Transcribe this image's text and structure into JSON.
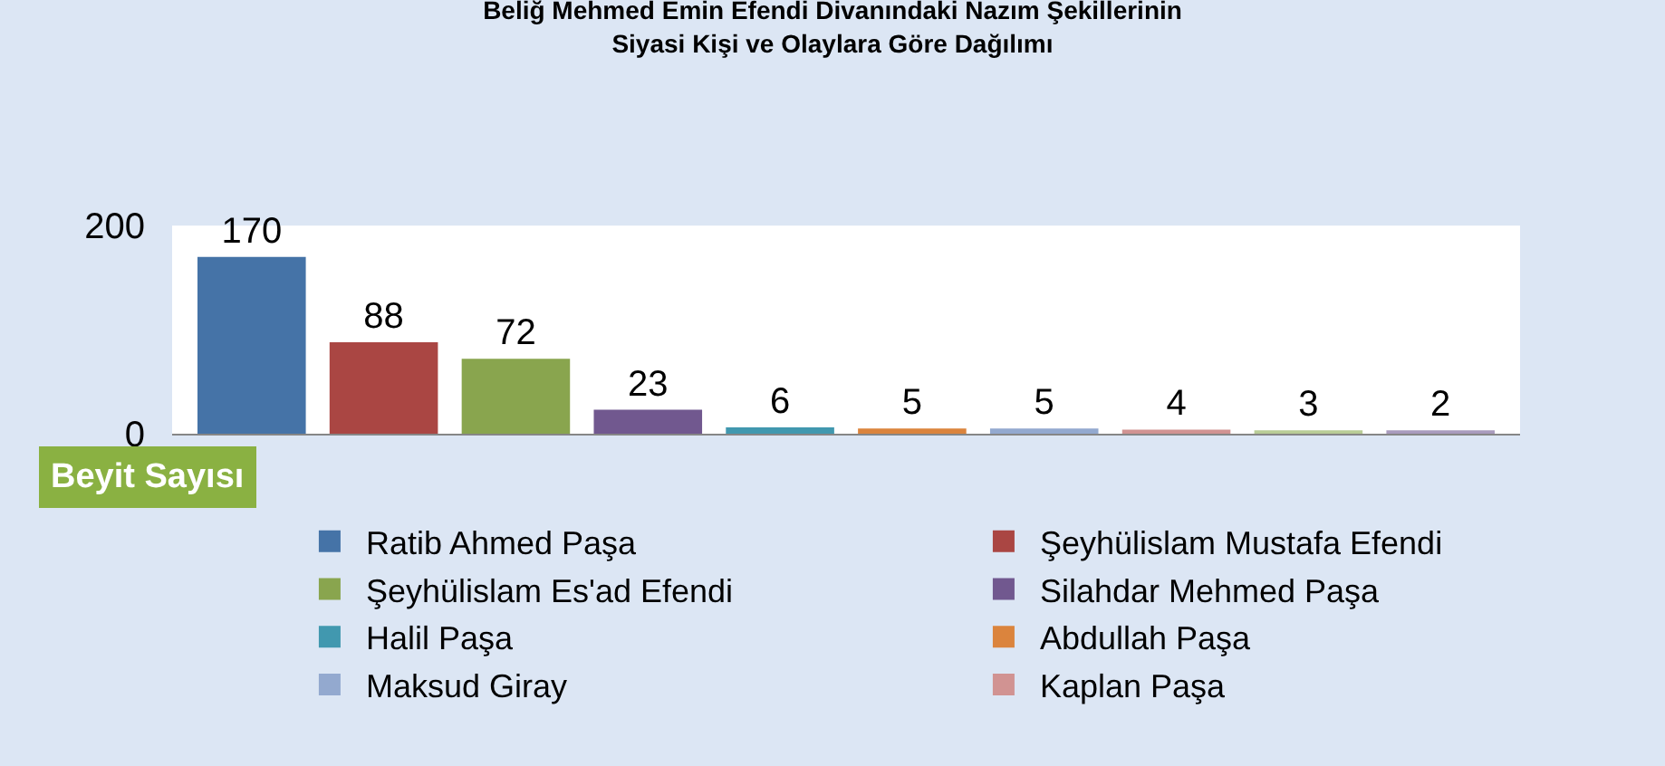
{
  "chart_data": {
    "type": "bar",
    "title": "Beliğ Mehmed Emin Efendi Divanındaki Nazım Şekillerinin\nSiyasi Kişi ve Olaylara Göre Dağılımı",
    "xlabel": "Beyit Sayısı",
    "categories": [
      null
    ],
    "series": [
      {
        "name": "Ratib Ahmed Paşa",
        "color": "#4573a7",
        "values": [
          170
        ]
      },
      {
        "name": "Şeyhülislam Mustafa Efendi",
        "color": "#aa4643",
        "values": [
          88
        ]
      },
      {
        "name": "Şeyhülislam Es'ad Efendi",
        "color": "#89a54e",
        "values": [
          72
        ]
      },
      {
        "name": "Silahdar Mehmed Paşa",
        "color": "#71588f",
        "values": [
          23
        ]
      },
      {
        "name": "Halil Paşa",
        "color": "#4198af",
        "values": [
          6
        ]
      },
      {
        "name": "Abdullah Paşa",
        "color": "#db843d",
        "values": [
          5
        ]
      },
      {
        "name": "Maksud Giray",
        "color": "#93a9cf",
        "values": [
          5
        ]
      },
      {
        "name": "Kaplan Paşa",
        "color": "#d19392",
        "values": [
          4
        ]
      },
      {
        "color": "#b9cd96",
        "values": [
          3
        ]
      },
      {
        "color": "#a99bbd",
        "values": [
          2
        ]
      }
    ],
    "ylim": [
      0,
      200
    ],
    "yticks": [
      0,
      200
    ],
    "data_labels": true,
    "legend": "bottom",
    "grid": false,
    "tick_labels": "y"
  }
}
